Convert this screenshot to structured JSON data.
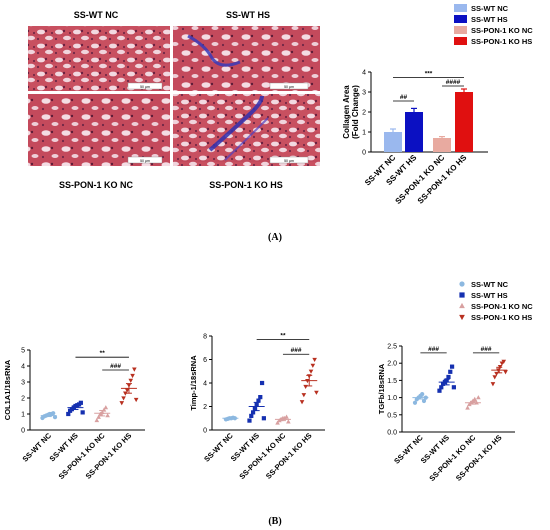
{
  "panel_a": {
    "micrograph_labels": [
      "SS-WT NC",
      "SS-WT HS",
      "SS-PON-1 KO NC",
      "SS-PON-1 KO HS"
    ],
    "scale_bar": "50 μm"
  },
  "panel_labels": {
    "a": "(A)",
    "b": "(B)"
  },
  "colors": {
    "wt_nc": "#9ab8ee",
    "wt_hs": "#0b10c2",
    "ko_nc": "#e8aaa0",
    "ko_hs": "#e01010",
    "pt_wt_nc": "#8cb8e0",
    "pt_wt_hs": "#1530b0",
    "pt_ko_nc": "#d8a0a0",
    "pt_ko_hs": "#b83020"
  },
  "chart_data": [
    {
      "type": "bar",
      "categories": [
        "SS-WT NC",
        "SS-WT HS",
        "SS-PON-1 KO NC",
        "SS-PON-1 KO HS"
      ],
      "values": [
        1.0,
        2.0,
        0.7,
        3.0
      ],
      "errors": [
        0.15,
        0.18,
        0.07,
        0.15
      ],
      "ylabel": "Collagen Area\n(Fold Change)",
      "ylim": [
        0,
        4
      ],
      "yticks": [
        "0",
        "1",
        "2",
        "3",
        "4"
      ],
      "legend": [
        "SS-WT NC",
        "SS-WT HS",
        "SS-PON-1 KO NC",
        "SS-PON-1 KO HS"
      ],
      "annotations": [
        "##",
        "***",
        "####"
      ]
    },
    {
      "type": "scatter",
      "categories": [
        "SS-WT NC",
        "SS-WT HS",
        "SS-PON-1 KO NC",
        "SS-PON-1 KO HS"
      ],
      "ylabel": "COL1A1/18sRNA",
      "ylim": [
        0,
        5
      ],
      "yticks": [
        "0",
        "1",
        "2",
        "3",
        "4",
        "5"
      ],
      "points": [
        [
          0.75,
          0.85,
          0.9,
          0.95,
          1.0,
          1.0,
          1.05,
          0.8
        ],
        [
          1.0,
          1.2,
          1.3,
          1.4,
          1.5,
          1.55,
          1.6,
          1.7,
          1.1
        ],
        [
          0.6,
          0.8,
          1.0,
          1.1,
          1.25,
          1.4,
          0.9
        ],
        [
          1.7,
          2.0,
          2.3,
          2.5,
          2.8,
          3.1,
          3.4,
          3.8,
          1.9
        ]
      ],
      "means": [
        0.9,
        1.4,
        1.05,
        2.6
      ],
      "sems": [
        0.06,
        0.12,
        0.17,
        0.3
      ],
      "annotations": [
        "**",
        "###"
      ]
    },
    {
      "type": "scatter",
      "categories": [
        "SS-WT NC",
        "SS-WT HS",
        "SS-PON-1 KO NC",
        "SS-PON-1 KO HS"
      ],
      "ylabel": "Timp-1/18sRNA",
      "ylim": [
        0,
        8
      ],
      "yticks": [
        "0",
        "2",
        "4",
        "6",
        "8"
      ],
      "points": [
        [
          0.9,
          0.95,
          1.0,
          1.0,
          1.05,
          1.0
        ],
        [
          0.8,
          1.2,
          1.5,
          1.8,
          2.2,
          2.5,
          2.8,
          4.0,
          1.0
        ],
        [
          0.6,
          0.8,
          0.9,
          1.0,
          1.0,
          1.1,
          0.7
        ],
        [
          2.4,
          3.0,
          3.7,
          4.2,
          4.6,
          5.0,
          5.5,
          6.0,
          3.2
        ]
      ],
      "means": [
        1.0,
        2.0,
        0.9,
        4.2
      ],
      "sems": [
        0.05,
        0.35,
        0.1,
        0.45
      ],
      "annotations": [
        "**",
        "###"
      ]
    },
    {
      "type": "scatter",
      "categories": [
        "SS-WT NC",
        "SS-WT HS",
        "SS-PON-1 KO NC",
        "SS-PON-1 KO HS"
      ],
      "ylabel": "TGFb/18sRNA",
      "ylim": [
        0,
        2.5
      ],
      "yticks": [
        "0.0",
        "0.5",
        "1.0",
        "1.5",
        "2.0",
        "2.5"
      ],
      "points": [
        [
          0.85,
          0.95,
          1.0,
          1.05,
          1.1,
          0.9,
          1.0
        ],
        [
          1.2,
          1.3,
          1.4,
          1.45,
          1.5,
          1.6,
          1.75,
          1.9,
          1.3
        ],
        [
          0.7,
          0.8,
          0.85,
          0.9,
          0.95,
          0.85,
          1.0
        ],
        [
          1.4,
          1.6,
          1.7,
          1.8,
          1.9,
          2.0,
          2.05,
          1.75
        ]
      ],
      "means": [
        1.0,
        1.45,
        0.85,
        1.8
      ],
      "sems": [
        0.04,
        0.08,
        0.04,
        0.08
      ],
      "legend": [
        "SS-WT NC",
        "SS-WT HS",
        "SS-PON-1 KO NC",
        "SS-PON-1 KO HS"
      ],
      "annotations": [
        "###",
        "###"
      ]
    }
  ]
}
